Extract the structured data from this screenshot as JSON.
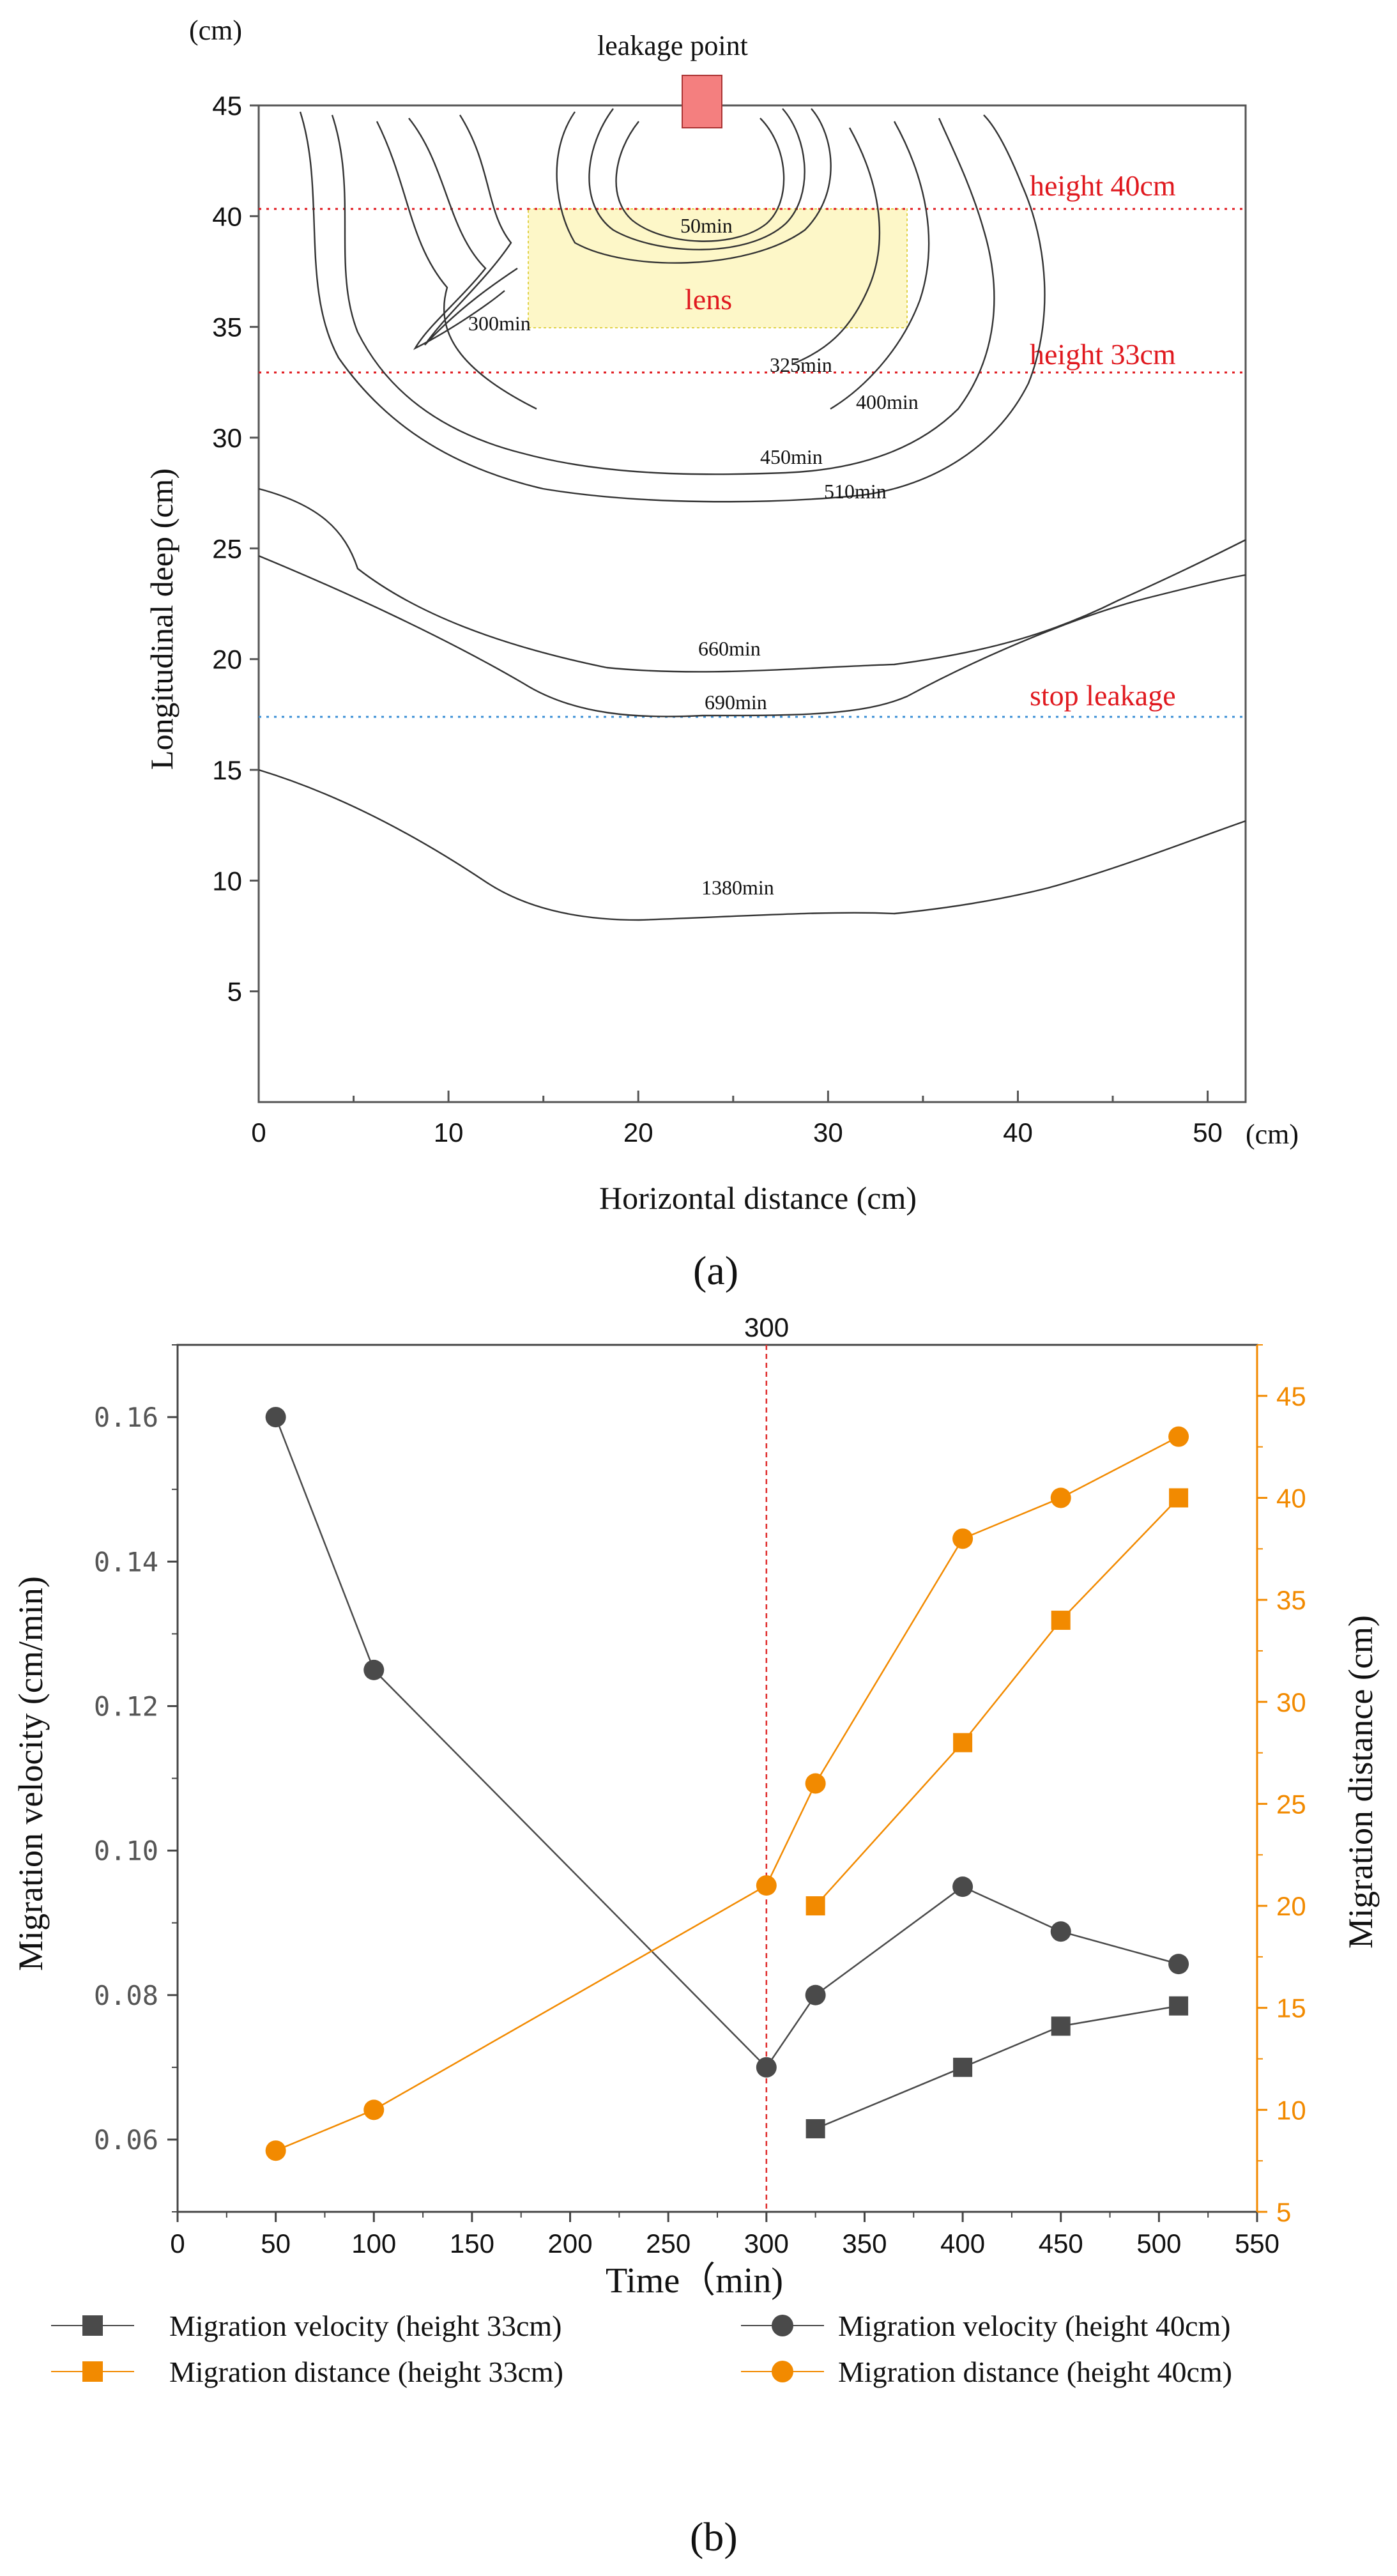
{
  "chart_data": [
    {
      "panel": "(a)",
      "type": "contour",
      "xlabel": "Horizontal distance (cm)",
      "ylabel": "Longitudinal deep (cm)",
      "x_unit": "(cm)",
      "y_unit": "(cm)",
      "xlim": [
        0,
        52
      ],
      "ylim": [
        0,
        45
      ],
      "xticks": [
        "0",
        "10",
        "20",
        "30",
        "40",
        "50"
      ],
      "yticks": [
        "5",
        "10",
        "15",
        "20",
        "25",
        "30",
        "35",
        "40",
        "45"
      ],
      "leakage_point": {
        "label": "leakage point",
        "x": 24,
        "y": 45
      },
      "lens": {
        "label": "lens",
        "x_range": [
          15,
          35
        ],
        "y_range": [
          34.5,
          40
        ]
      },
      "reference_lines": [
        {
          "label": "height 40cm",
          "y": 40,
          "color": "#e0191f"
        },
        {
          "label": "height 33cm",
          "y": 32.7,
          "color": "#e0191f"
        },
        {
          "label": "stop leakage",
          "y": 17.5,
          "color": "#3a8fd6"
        }
      ],
      "contours": [
        {
          "label": "50min",
          "bottom_y": 38.8
        },
        {
          "label": "300min",
          "bottom_y": 35
        },
        {
          "label": "325min",
          "bottom_y": 33.5
        },
        {
          "label": "400min",
          "bottom_y": 31
        },
        {
          "label": "450min",
          "bottom_y": 28
        },
        {
          "label": "510min",
          "bottom_y": 27
        },
        {
          "label": "660min",
          "bottom_y": 19.5
        },
        {
          "label": "690min",
          "bottom_y": 17.5
        },
        {
          "label": "1380min",
          "bottom_y": 8.6
        }
      ]
    },
    {
      "panel": "(b)",
      "type": "line",
      "xlabel": "Time（min)",
      "ylabel_left": "Migration velocity (cm/min)",
      "ylabel_right": "Migration distance (cm)",
      "xlim": [
        0,
        550
      ],
      "ylim_left": [
        0.05,
        0.17
      ],
      "ylim_right": [
        5,
        47.5
      ],
      "xticks": [
        "0",
        "50",
        "100",
        "150",
        "200",
        "250",
        "300",
        "350",
        "400",
        "450",
        "500",
        "550"
      ],
      "yticks_left": [
        "0.06",
        "0.08",
        "0.10",
        "0.12",
        "0.14",
        "0.16"
      ],
      "yticks_right": [
        "5",
        "10",
        "15",
        "20",
        "25",
        "30",
        "35",
        "40",
        "45"
      ],
      "vline": {
        "x": 300,
        "label": "300"
      },
      "series": [
        {
          "name": "Migration velocity (height 33cm)",
          "axis": "left",
          "marker": "square",
          "color": "#4a4a4a",
          "x": [
            325,
            400,
            450,
            510
          ],
          "y": [
            0.0615,
            0.07,
            0.0757,
            0.0785
          ]
        },
        {
          "name": "Migration velocity (height 40cm)",
          "axis": "left",
          "marker": "circle",
          "color": "#4a4a4a",
          "x": [
            50,
            100,
            300,
            325,
            400,
            450,
            510
          ],
          "y": [
            0.16,
            0.125,
            0.07,
            0.08,
            0.095,
            0.0888,
            0.0843
          ]
        },
        {
          "name": "Migration distance (height 33cm)",
          "axis": "right",
          "marker": "square",
          "color": "#f28a00",
          "x": [
            325,
            400,
            450,
            510
          ],
          "y": [
            20,
            28,
            34,
            40
          ]
        },
        {
          "name": "Migration distance (height 40cm)",
          "axis": "right",
          "marker": "circle",
          "color": "#f28a00",
          "x": [
            50,
            100,
            300,
            325,
            400,
            450,
            510
          ],
          "y": [
            8,
            10,
            21,
            26,
            38,
            40,
            43
          ]
        }
      ]
    }
  ]
}
